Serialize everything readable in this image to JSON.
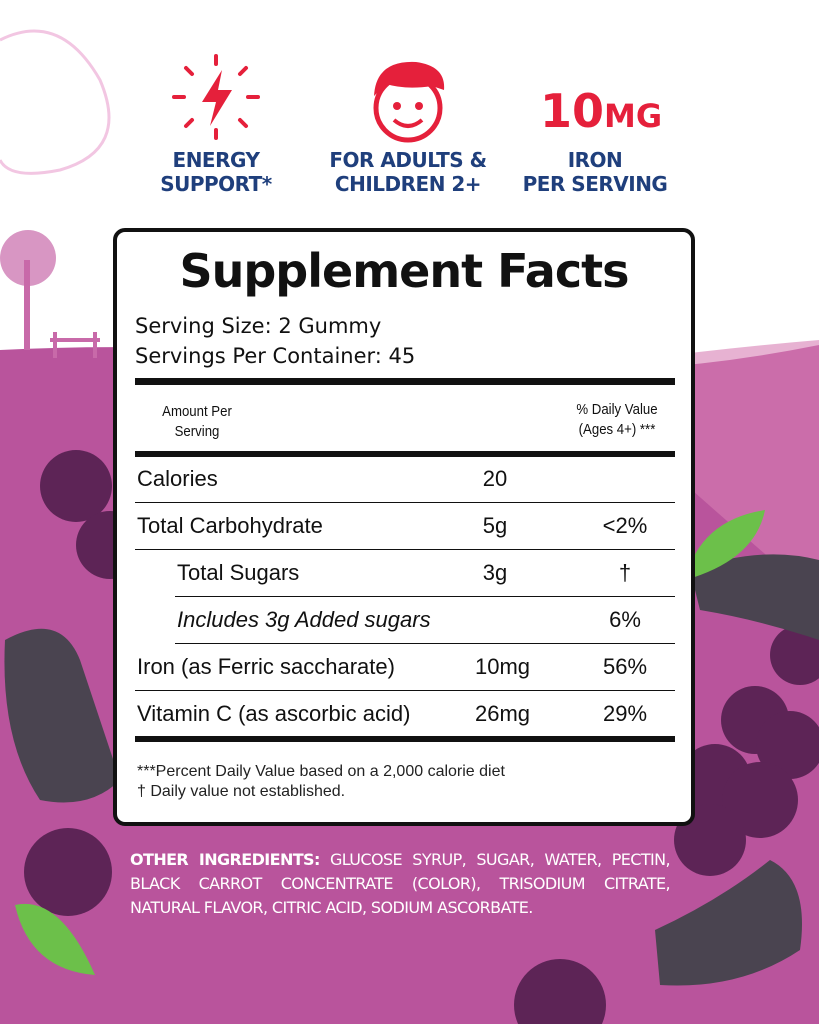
{
  "badges": [
    {
      "icon": "lightning-bolt-icon",
      "line1": "ENERGY",
      "line2": "SUPPORT*"
    },
    {
      "icon": "child-face-icon",
      "line1": "FOR ADULTS &",
      "line2": "CHILDREN 2+"
    },
    {
      "big_number": "10",
      "big_unit": "MG",
      "line1": "IRON",
      "line2": "PER SERVING"
    }
  ],
  "facts": {
    "title": "Supplement Facts",
    "serving_size": "Serving Size: 2 Gummy",
    "servings_per_container": "Servings Per Container: 45",
    "header_amount": [
      "Amount Per",
      "Serving"
    ],
    "header_dv": [
      "% Daily Value",
      "(Ages 4+) ***"
    ],
    "rows": [
      {
        "name": "Calories",
        "amount": "20",
        "dv": ""
      },
      {
        "name": "Total Carbohydrate",
        "amount": "5g",
        "dv": "<2%"
      },
      {
        "name": "Total Sugars",
        "amount": "3g",
        "dv": "†"
      },
      {
        "name": "Includes 3g Added sugars",
        "amount": "",
        "dv": "6%"
      },
      {
        "name": "Iron (as Ferric saccharate)",
        "amount": "10mg",
        "dv": "56%"
      },
      {
        "name": "Vitamin C (as ascorbic acid)",
        "amount": "26mg",
        "dv": "29%"
      }
    ],
    "footnote1": "***Percent Daily Value based on a 2,000 calorie diet",
    "footnote2": "† Daily value not established."
  },
  "ingredients": {
    "label": "OTHER INGREDIENTS:",
    "text": " GLUCOSE SYRUP, SUGAR, WATER, PECTIN, BLACK CARROT CONCENTRATE (COLOR), TRISODIUM CITRATE, NATURAL FLAVOR, CITRIC ACID, SODIUM ASCORBATE."
  },
  "colors": {
    "accent_red": "#e5203b",
    "text_blue": "#1f3f7c",
    "background_purple": "#b9549c"
  }
}
